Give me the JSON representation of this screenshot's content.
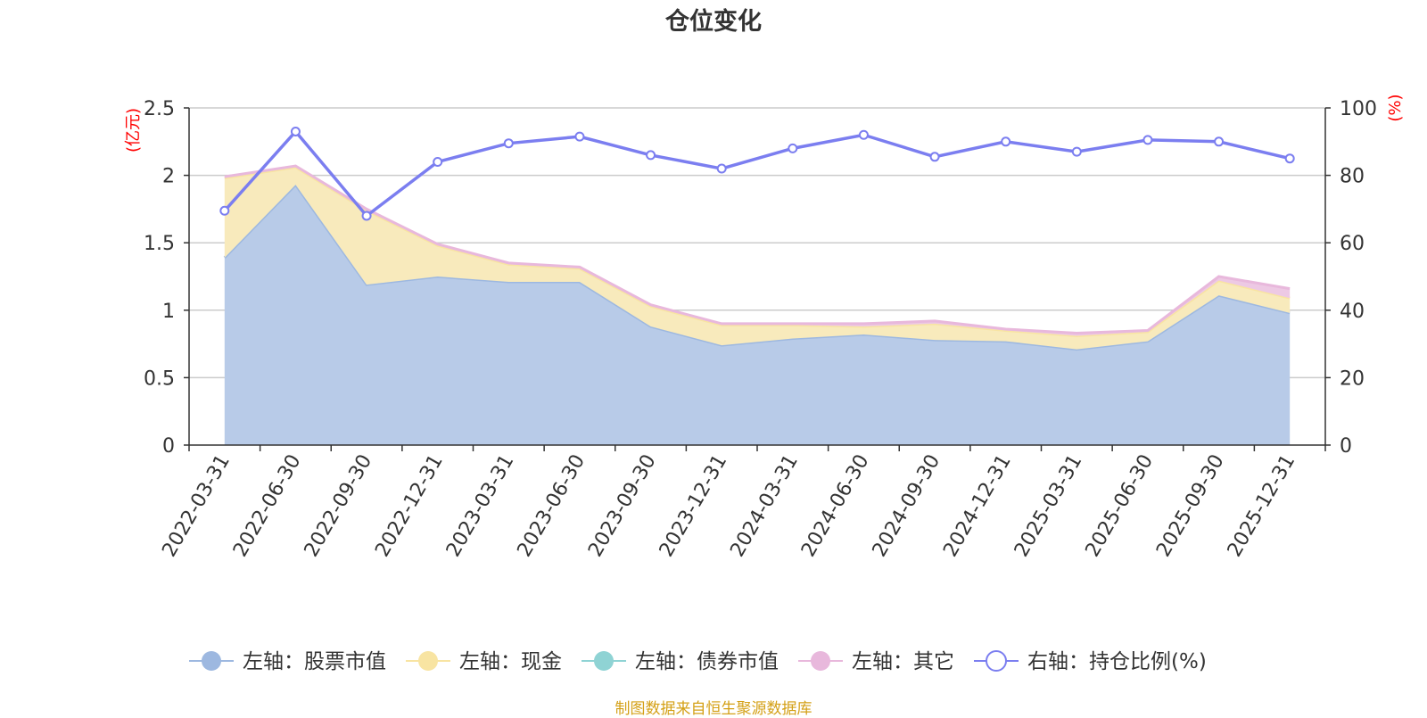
{
  "chart_data": {
    "type": "area",
    "title": "仓位变化",
    "source_note": "制图数据来自恒生聚源数据库",
    "categories": [
      "2022-03-31",
      "2022-06-30",
      "2022-09-30",
      "2022-12-31",
      "2023-03-31",
      "2023-06-30",
      "2023-09-30",
      "2023-12-31",
      "2024-03-31",
      "2024-06-30",
      "2024-09-30",
      "2024-12-31",
      "2025-03-31",
      "2025-06-30",
      "2025-09-30",
      "2025-12-31"
    ],
    "left_axis": {
      "unit_label": "(亿元)",
      "ylim": [
        0,
        2.5
      ],
      "ticks": [
        "0",
        "0.5",
        "1",
        "1.5",
        "2",
        "2.5"
      ],
      "tick_values": [
        0,
        0.5,
        1,
        1.5,
        2,
        2.5
      ]
    },
    "right_axis": {
      "unit_label": "(%)",
      "ylim": [
        0,
        100
      ],
      "ticks": [
        "0",
        "20",
        "40",
        "60",
        "80",
        "100"
      ],
      "tick_values": [
        0,
        20,
        40,
        60,
        80,
        100
      ]
    },
    "stacked": true,
    "grid": true,
    "legend_position": "bottom",
    "series": [
      {
        "name": "左轴：股票市值",
        "axis": "left",
        "kind": "area",
        "color": "#9db8e0",
        "fill": "#b8cbe8",
        "values": [
          1.39,
          1.93,
          1.19,
          1.25,
          1.21,
          1.21,
          0.88,
          0.74,
          0.79,
          0.82,
          0.78,
          0.77,
          0.71,
          0.77,
          1.11,
          0.98
        ]
      },
      {
        "name": "左轴：现金",
        "axis": "left",
        "kind": "area",
        "color": "#f8e4a2",
        "fill": "#f8eabc",
        "values": [
          0.59,
          0.13,
          0.55,
          0.23,
          0.13,
          0.1,
          0.15,
          0.15,
          0.1,
          0.06,
          0.12,
          0.08,
          0.1,
          0.07,
          0.11,
          0.11
        ]
      },
      {
        "name": "左轴：债券市值",
        "axis": "left",
        "kind": "area",
        "color": "#8fd3d4",
        "fill": "#8fd3d4",
        "values": [
          0,
          0,
          0,
          0,
          0,
          0,
          0,
          0,
          0,
          0,
          0,
          0,
          0,
          0,
          0,
          0
        ]
      },
      {
        "name": "左轴：其它",
        "axis": "left",
        "kind": "area",
        "color": "#e8b8dc",
        "fill": "#edc9e4",
        "values": [
          0.01,
          0.01,
          0.01,
          0.01,
          0.01,
          0.01,
          0.01,
          0.01,
          0.01,
          0.02,
          0.02,
          0.01,
          0.02,
          0.01,
          0.03,
          0.07
        ]
      },
      {
        "name": "右轴：持仓比例(%)",
        "axis": "right",
        "kind": "line",
        "color": "#7b7ef0",
        "values": [
          69.5,
          93.0,
          68.0,
          84.0,
          89.5,
          91.5,
          86.0,
          82.0,
          88.0,
          92.0,
          85.5,
          90.0,
          87.0,
          90.5,
          90.0,
          85.0
        ]
      }
    ]
  }
}
